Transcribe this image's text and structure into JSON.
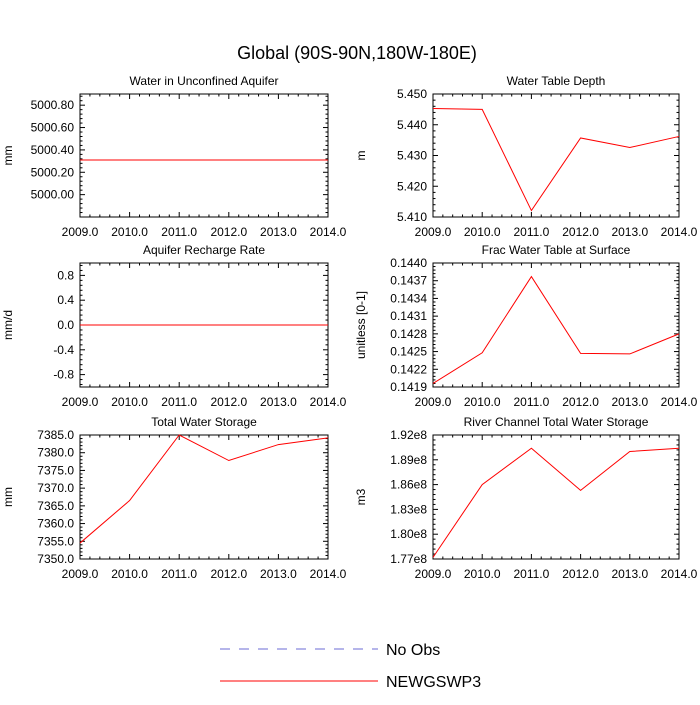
{
  "title": "Global (90S-90N,180W-180E)",
  "colors": {
    "obs": "#6b6bd6",
    "model": "#ff0000",
    "axis": "#000000"
  },
  "legend": {
    "placement": "bottom-center",
    "items": [
      {
        "label": "No Obs",
        "style": "dashed",
        "color": "#6b6bd6"
      },
      {
        "label": "NEWGSWP3",
        "style": "solid",
        "color": "#ff0000"
      }
    ]
  },
  "chart_data": [
    {
      "type": "line",
      "title": "Water in Unconfined Aquifer",
      "ylabel": "mm",
      "x": [
        2009.0,
        2010.0,
        2011.0,
        2012.0,
        2013.0,
        2014.0
      ],
      "xticks": [
        "2009.0",
        "2010.0",
        "2011.0",
        "2012.0",
        "2013.0",
        "2014.0"
      ],
      "xlim": [
        2009.0,
        2014.0
      ],
      "ylim": [
        4999.8,
        5000.9
      ],
      "yticks": [
        5000.0,
        5000.2,
        5000.4,
        5000.6,
        5000.8
      ],
      "ytick_labels": [
        "5000.00",
        "5000.20",
        "5000.40",
        "5000.60",
        "5000.80"
      ],
      "series": [
        {
          "name": "NEWGSWP3",
          "values": [
            5000.31,
            5000.31,
            5000.31,
            5000.31,
            5000.31,
            5000.31
          ]
        }
      ]
    },
    {
      "type": "line",
      "title": "Water Table Depth",
      "ylabel": "m",
      "x": [
        2009.0,
        2010.0,
        2011.0,
        2012.0,
        2013.0,
        2014.0
      ],
      "xticks": [
        "2009.0",
        "2010.0",
        "2011.0",
        "2012.0",
        "2013.0",
        "2014.0"
      ],
      "xlim": [
        2009.0,
        2014.0
      ],
      "ylim": [
        5.41,
        5.45
      ],
      "yticks": [
        5.41,
        5.42,
        5.43,
        5.44,
        5.45
      ],
      "ytick_labels": [
        "5.410",
        "5.420",
        "5.430",
        "5.440",
        "5.450"
      ],
      "series": [
        {
          "name": "NEWGSWP3",
          "values": [
            5.4453,
            5.445,
            5.4121,
            5.4357,
            5.4326,
            5.4362
          ]
        }
      ]
    },
    {
      "type": "line",
      "title": "Aquifer Recharge Rate",
      "ylabel": "mm/d",
      "x": [
        2009.0,
        2010.0,
        2011.0,
        2012.0,
        2013.0,
        2014.0
      ],
      "xticks": [
        "2009.0",
        "2010.0",
        "2011.0",
        "2012.0",
        "2013.0",
        "2014.0"
      ],
      "xlim": [
        2009.0,
        2014.0
      ],
      "ylim": [
        -1.0,
        1.0
      ],
      "yticks": [
        -0.8,
        -0.4,
        0.0,
        0.4,
        0.8
      ],
      "ytick_labels": [
        "-0.8",
        "-0.4",
        "0.0",
        "0.4",
        "0.8"
      ],
      "series": [
        {
          "name": "NEWGSWP3",
          "values": [
            0.0,
            0.0,
            0.0,
            0.0,
            0.0,
            0.0
          ]
        }
      ]
    },
    {
      "type": "line",
      "title": "Frac Water Table at Surface",
      "ylabel": "unitless [0-1]",
      "x": [
        2009.0,
        2010.0,
        2011.0,
        2012.0,
        2013.0,
        2014.0
      ],
      "xticks": [
        "2009.0",
        "2010.0",
        "2011.0",
        "2012.0",
        "2013.0",
        "2014.0"
      ],
      "xlim": [
        2009.0,
        2014.0
      ],
      "ylim": [
        0.1419,
        0.144
      ],
      "yticks": [
        0.1419,
        0.1422,
        0.1425,
        0.1428,
        0.1431,
        0.1434,
        0.1437,
        0.144
      ],
      "ytick_labels": [
        "0.1419",
        "0.1422",
        "0.1425",
        "0.1428",
        "0.1431",
        "0.1434",
        "0.1437",
        "0.1440"
      ],
      "series": [
        {
          "name": "NEWGSWP3",
          "values": [
            0.14196,
            0.14248,
            0.14377,
            0.14247,
            0.14246,
            0.1428
          ]
        }
      ]
    },
    {
      "type": "line",
      "title": "Total Water Storage",
      "ylabel": "mm",
      "x": [
        2009.0,
        2010.0,
        2011.0,
        2012.0,
        2013.0,
        2014.0
      ],
      "xticks": [
        "2009.0",
        "2010.0",
        "2011.0",
        "2012.0",
        "2013.0",
        "2014.0"
      ],
      "xlim": [
        2009.0,
        2014.0
      ],
      "ylim": [
        7350.0,
        7385.0
      ],
      "yticks": [
        7350.0,
        7355.0,
        7360.0,
        7365.0,
        7370.0,
        7375.0,
        7380.0,
        7385.0
      ],
      "ytick_labels": [
        "7350.0",
        "7355.0",
        "7360.0",
        "7365.0",
        "7370.0",
        "7375.0",
        "7380.0",
        "7385.0"
      ],
      "series": [
        {
          "name": "NEWGSWP3",
          "values": [
            7354.5,
            7366.5,
            7385.0,
            7377.8,
            7382.3,
            7384.2
          ]
        }
      ]
    },
    {
      "type": "line",
      "title": "River Channel Total Water Storage",
      "ylabel": "m3",
      "x": [
        2009.0,
        2010.0,
        2011.0,
        2012.0,
        2013.0,
        2014.0
      ],
      "xticks": [
        "2009.0",
        "2010.0",
        "2011.0",
        "2012.0",
        "2013.0",
        "2014.0"
      ],
      "xlim": [
        2009.0,
        2014.0
      ],
      "ylim": [
        177000000.0,
        192000000.0
      ],
      "yticks": [
        177000000.0,
        180000000.0,
        183000000.0,
        186000000.0,
        189000000.0,
        192000000.0
      ],
      "ytick_labels": [
        "1.77e8",
        "1.80e8",
        "1.83e8",
        "1.86e8",
        "1.89e8",
        "1.92e8"
      ],
      "series": [
        {
          "name": "NEWGSWP3",
          "values": [
            177200000.0,
            186000000.0,
            190400000.0,
            185300000.0,
            190000000.0,
            190400000.0
          ]
        }
      ]
    }
  ]
}
